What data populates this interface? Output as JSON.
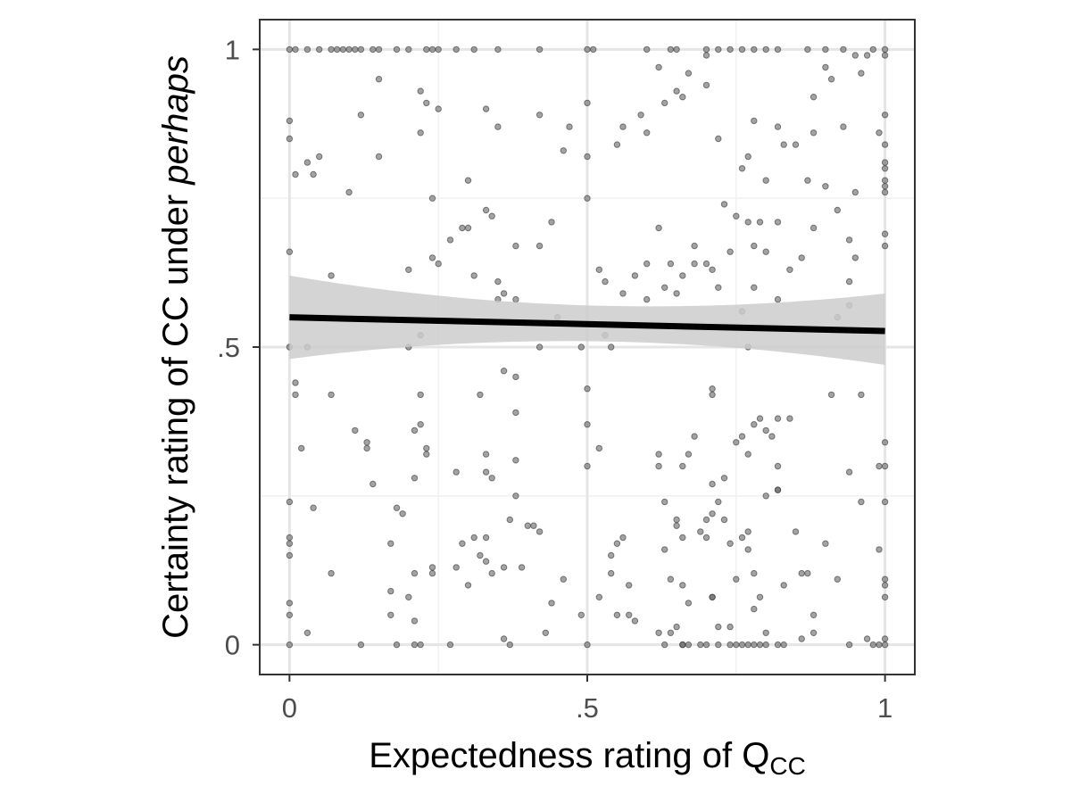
{
  "chart_data": {
    "type": "scatter",
    "title": "",
    "xlabel": {
      "prefix": "Expectedness rating of Q",
      "subscript": "CC"
    },
    "ylabel": {
      "prefix": "Certainty rating of CC under ",
      "emphasis": "perhaps"
    },
    "xlim": [
      -0.05,
      1.05
    ],
    "ylim": [
      -0.05,
      1.05
    ],
    "x_ticks": [
      {
        "value": 0,
        "label": "0"
      },
      {
        "value": 0.5,
        "label": ".5"
      },
      {
        "value": 1,
        "label": "1"
      }
    ],
    "y_ticks": [
      {
        "value": 0,
        "label": "0"
      },
      {
        "value": 0.5,
        "label": ".5"
      },
      {
        "value": 1,
        "label": "1"
      }
    ],
    "minor_gridlines": [
      0.25,
      0.75
    ],
    "grid": true,
    "legend": "none",
    "colors": {
      "points": "#666666",
      "point_stroke": "#333333",
      "fit_line": "#000000",
      "ci_band": "#cccccc",
      "grid_major": "#e5e5e5",
      "grid_minor": "#f1f1f1",
      "panel_border": "#333333"
    },
    "fit": {
      "x": [
        0,
        1
      ],
      "y": [
        0.55,
        0.527
      ],
      "ci_lower": [
        0.48,
        0.47
      ],
      "ci_upper": [
        0.62,
        0.59
      ],
      "ci_mid_x": 0.5,
      "ci_mid_lower": [
        0.51
      ],
      "ci_mid_upper": [
        0.57
      ]
    },
    "points": [
      [
        0.0,
        1.0
      ],
      [
        0.01,
        1.0
      ],
      [
        0.03,
        1.0
      ],
      [
        0.05,
        1.0
      ],
      [
        0.07,
        1.0
      ],
      [
        0.08,
        1.0
      ],
      [
        0.09,
        1.0
      ],
      [
        0.1,
        1.0
      ],
      [
        0.11,
        1.0
      ],
      [
        0.12,
        1.0
      ],
      [
        0.14,
        1.0
      ],
      [
        0.15,
        1.0
      ],
      [
        0.18,
        1.0
      ],
      [
        0.2,
        1.0
      ],
      [
        0.23,
        1.0
      ],
      [
        0.24,
        1.0
      ],
      [
        0.25,
        1.0
      ],
      [
        0.28,
        1.0
      ],
      [
        0.31,
        1.0
      ],
      [
        0.35,
        1.0
      ],
      [
        0.42,
        1.0
      ],
      [
        0.5,
        1.0
      ],
      [
        0.51,
        1.0
      ],
      [
        0.6,
        1.0
      ],
      [
        0.64,
        1.0
      ],
      [
        0.65,
        1.0
      ],
      [
        0.7,
        1.0
      ],
      [
        0.7,
        0.99
      ],
      [
        0.72,
        1.0
      ],
      [
        0.74,
        1.0
      ],
      [
        0.76,
        1.0
      ],
      [
        0.78,
        1.0
      ],
      [
        0.8,
        1.0
      ],
      [
        0.82,
        1.0
      ],
      [
        0.87,
        1.0
      ],
      [
        0.9,
        1.0
      ],
      [
        0.93,
        1.0
      ],
      [
        0.95,
        0.99
      ],
      [
        0.97,
        0.99
      ],
      [
        0.98,
        1.0
      ],
      [
        1.0,
        1.0
      ],
      [
        1.0,
        0.99
      ],
      [
        0.0,
        0.88
      ],
      [
        0.0,
        0.85
      ],
      [
        0.01,
        0.79
      ],
      [
        0.03,
        0.81
      ],
      [
        0.04,
        0.79
      ],
      [
        0.05,
        0.82
      ],
      [
        0.1,
        0.76
      ],
      [
        0.12,
        0.89
      ],
      [
        0.15,
        0.82
      ],
      [
        0.15,
        0.95
      ],
      [
        0.22,
        0.93
      ],
      [
        0.22,
        0.86
      ],
      [
        0.23,
        0.91
      ],
      [
        0.25,
        0.9
      ],
      [
        0.24,
        0.75
      ],
      [
        0.3,
        0.78
      ],
      [
        0.33,
        0.9
      ],
      [
        0.35,
        0.87
      ],
      [
        0.42,
        0.89
      ],
      [
        0.46,
        0.83
      ],
      [
        0.47,
        0.87
      ],
      [
        0.5,
        0.91
      ],
      [
        0.5,
        0.82
      ],
      [
        0.5,
        0.75
      ],
      [
        0.55,
        0.84
      ],
      [
        0.56,
        0.87
      ],
      [
        0.59,
        0.89
      ],
      [
        0.6,
        0.86
      ],
      [
        0.62,
        0.97
      ],
      [
        0.63,
        0.91
      ],
      [
        0.65,
        0.93
      ],
      [
        0.66,
        0.92
      ],
      [
        0.67,
        0.96
      ],
      [
        0.7,
        0.94
      ],
      [
        0.72,
        0.85
      ],
      [
        0.76,
        0.8
      ],
      [
        0.77,
        0.82
      ],
      [
        0.78,
        0.88
      ],
      [
        0.8,
        0.78
      ],
      [
        0.82,
        0.87
      ],
      [
        0.83,
        0.84
      ],
      [
        0.85,
        0.84
      ],
      [
        0.87,
        0.78
      ],
      [
        0.88,
        0.92
      ],
      [
        0.88,
        0.86
      ],
      [
        0.9,
        0.97
      ],
      [
        0.91,
        0.95
      ],
      [
        0.93,
        0.87
      ],
      [
        0.95,
        0.76
      ],
      [
        0.96,
        0.96
      ],
      [
        0.99,
        0.86
      ],
      [
        1.0,
        0.89
      ],
      [
        1.0,
        0.84
      ],
      [
        1.0,
        0.81
      ],
      [
        1.0,
        0.8
      ],
      [
        1.0,
        0.78
      ],
      [
        1.0,
        0.77
      ],
      [
        1.0,
        0.76
      ],
      [
        0.9,
        0.77
      ],
      [
        0.0,
        0.66
      ],
      [
        0.07,
        0.62
      ],
      [
        0.2,
        0.63
      ],
      [
        0.24,
        0.65
      ],
      [
        0.25,
        0.64
      ],
      [
        0.27,
        0.68
      ],
      [
        0.29,
        0.7
      ],
      [
        0.3,
        0.7
      ],
      [
        0.31,
        0.62
      ],
      [
        0.33,
        0.73
      ],
      [
        0.34,
        0.72
      ],
      [
        0.35,
        0.61
      ],
      [
        0.38,
        0.67
      ],
      [
        0.42,
        0.67
      ],
      [
        0.44,
        0.71
      ],
      [
        0.52,
        0.63
      ],
      [
        0.53,
        0.61
      ],
      [
        0.56,
        0.59
      ],
      [
        0.58,
        0.62
      ],
      [
        0.6,
        0.64
      ],
      [
        0.62,
        0.7
      ],
      [
        0.63,
        0.6
      ],
      [
        0.64,
        0.64
      ],
      [
        0.66,
        0.62
      ],
      [
        0.68,
        0.64
      ],
      [
        0.68,
        0.67
      ],
      [
        0.7,
        0.64
      ],
      [
        0.71,
        0.63
      ],
      [
        0.72,
        0.6
      ],
      [
        0.73,
        0.74
      ],
      [
        0.74,
        0.66
      ],
      [
        0.75,
        0.72
      ],
      [
        0.77,
        0.71
      ],
      [
        0.78,
        0.67
      ],
      [
        0.79,
        0.71
      ],
      [
        0.8,
        0.66
      ],
      [
        0.82,
        0.71
      ],
      [
        0.84,
        0.63
      ],
      [
        0.86,
        0.65
      ],
      [
        0.88,
        0.7
      ],
      [
        0.92,
        0.73
      ],
      [
        0.94,
        0.68
      ],
      [
        0.95,
        0.65
      ],
      [
        0.94,
        0.61
      ],
      [
        1.0,
        0.69
      ],
      [
        1.0,
        0.67
      ],
      [
        0.0,
        0.5
      ],
      [
        0.03,
        0.5
      ],
      [
        0.22,
        0.52
      ],
      [
        0.2,
        0.5
      ],
      [
        0.35,
        0.58
      ],
      [
        0.36,
        0.59
      ],
      [
        0.38,
        0.58
      ],
      [
        0.42,
        0.5
      ],
      [
        0.45,
        0.55
      ],
      [
        0.49,
        0.5
      ],
      [
        0.53,
        0.52
      ],
      [
        0.54,
        0.5
      ],
      [
        0.6,
        0.58
      ],
      [
        0.65,
        0.59
      ],
      [
        0.76,
        0.56
      ],
      [
        0.78,
        0.6
      ],
      [
        0.82,
        0.58
      ],
      [
        0.92,
        0.55
      ],
      [
        0.94,
        0.57
      ],
      [
        0.77,
        0.5
      ],
      [
        0.01,
        0.42
      ],
      [
        0.01,
        0.44
      ],
      [
        0.02,
        0.33
      ],
      [
        0.04,
        0.23
      ],
      [
        0.07,
        0.42
      ],
      [
        0.11,
        0.36
      ],
      [
        0.13,
        0.33
      ],
      [
        0.13,
        0.34
      ],
      [
        0.14,
        0.27
      ],
      [
        0.19,
        0.22
      ],
      [
        0.21,
        0.28
      ],
      [
        0.21,
        0.36
      ],
      [
        0.22,
        0.37
      ],
      [
        0.22,
        0.42
      ],
      [
        0.23,
        0.33
      ],
      [
        0.23,
        0.32
      ],
      [
        0.28,
        0.29
      ],
      [
        0.32,
        0.42
      ],
      [
        0.33,
        0.29
      ],
      [
        0.33,
        0.32
      ],
      [
        0.34,
        0.28
      ],
      [
        0.36,
        0.46
      ],
      [
        0.38,
        0.39
      ],
      [
        0.38,
        0.45
      ],
      [
        0.38,
        0.31
      ],
      [
        0.38,
        0.25
      ],
      [
        0.5,
        0.43
      ],
      [
        0.5,
        0.37
      ],
      [
        0.5,
        0.3
      ],
      [
        0.52,
        0.33
      ],
      [
        0.62,
        0.32
      ],
      [
        0.62,
        0.3
      ],
      [
        0.63,
        0.24
      ],
      [
        0.65,
        0.21
      ],
      [
        0.66,
        0.3
      ],
      [
        0.67,
        0.32
      ],
      [
        0.68,
        0.35
      ],
      [
        0.71,
        0.43
      ],
      [
        0.71,
        0.42
      ],
      [
        0.71,
        0.27
      ],
      [
        0.72,
        0.24
      ],
      [
        0.73,
        0.28
      ],
      [
        0.75,
        0.34
      ],
      [
        0.76,
        0.35
      ],
      [
        0.77,
        0.32
      ],
      [
        0.78,
        0.37
      ],
      [
        0.79,
        0.38
      ],
      [
        0.8,
        0.36
      ],
      [
        0.81,
        0.35
      ],
      [
        0.82,
        0.38
      ],
      [
        0.82,
        0.3
      ],
      [
        0.82,
        0.26
      ],
      [
        0.82,
        0.26
      ],
      [
        0.91,
        0.42
      ],
      [
        0.94,
        0.29
      ],
      [
        0.96,
        0.42
      ],
      [
        1.0,
        0.34
      ],
      [
        1.0,
        0.3
      ],
      [
        1.0,
        0.24
      ],
      [
        0.99,
        0.3
      ],
      [
        0.84,
        0.38
      ],
      [
        0.8,
        0.25
      ],
      [
        0.0,
        0.24
      ],
      [
        0.0,
        0.18
      ],
      [
        0.0,
        0.17
      ],
      [
        0.0,
        0.15
      ],
      [
        0.0,
        0.07
      ],
      [
        0.0,
        0.05
      ],
      [
        0.03,
        0.02
      ],
      [
        0.07,
        0.12
      ],
      [
        0.17,
        0.17
      ],
      [
        0.18,
        0.23
      ],
      [
        0.2,
        0.08
      ],
      [
        0.21,
        0.04
      ],
      [
        0.21,
        0.12
      ],
      [
        0.17,
        0.09
      ],
      [
        0.17,
        0.05
      ],
      [
        0.24,
        0.13
      ],
      [
        0.24,
        0.12
      ],
      [
        0.28,
        0.13
      ],
      [
        0.29,
        0.17
      ],
      [
        0.3,
        0.1
      ],
      [
        0.31,
        0.18
      ],
      [
        0.32,
        0.15
      ],
      [
        0.33,
        0.18
      ],
      [
        0.33,
        0.14
      ],
      [
        0.34,
        0.12
      ],
      [
        0.36,
        0.13
      ],
      [
        0.37,
        0.21
      ],
      [
        0.39,
        0.13
      ],
      [
        0.4,
        0.2
      ],
      [
        0.41,
        0.2
      ],
      [
        0.42,
        0.19
      ],
      [
        0.43,
        0.02
      ],
      [
        0.44,
        0.07
      ],
      [
        0.46,
        0.11
      ],
      [
        0.49,
        0.05
      ],
      [
        0.52,
        0.08
      ],
      [
        0.54,
        0.12
      ],
      [
        0.54,
        0.15
      ],
      [
        0.55,
        0.17
      ],
      [
        0.56,
        0.18
      ],
      [
        0.57,
        0.1
      ],
      [
        0.55,
        0.05
      ],
      [
        0.57,
        0.05
      ],
      [
        0.58,
        0.04
      ],
      [
        0.63,
        0.16
      ],
      [
        0.64,
        0.11
      ],
      [
        0.65,
        0.2
      ],
      [
        0.66,
        0.18
      ],
      [
        0.66,
        0.1
      ],
      [
        0.67,
        0.07
      ],
      [
        0.69,
        0.19
      ],
      [
        0.7,
        0.21
      ],
      [
        0.7,
        0.18
      ],
      [
        0.71,
        0.08
      ],
      [
        0.71,
        0.08
      ],
      [
        0.71,
        0.22
      ],
      [
        0.72,
        0.03
      ],
      [
        0.73,
        0.21
      ],
      [
        0.74,
        0.17
      ],
      [
        0.75,
        0.11
      ],
      [
        0.76,
        0.18
      ],
      [
        0.77,
        0.16
      ],
      [
        0.77,
        0.19
      ],
      [
        0.78,
        0.12
      ],
      [
        0.78,
        0.06
      ],
      [
        0.79,
        0.08
      ],
      [
        0.8,
        0.02
      ],
      [
        0.83,
        0.1
      ],
      [
        0.85,
        0.19
      ],
      [
        0.86,
        0.12
      ],
      [
        0.87,
        0.12
      ],
      [
        0.88,
        0.05
      ],
      [
        0.9,
        0.17
      ],
      [
        0.92,
        0.11
      ],
      [
        0.96,
        0.24
      ],
      [
        0.99,
        0.16
      ],
      [
        1.0,
        0.11
      ],
      [
        1.0,
        0.1
      ],
      [
        1.0,
        0.08
      ],
      [
        0.97,
        0.01
      ],
      [
        0.0,
        0.0
      ],
      [
        0.12,
        0.0
      ],
      [
        0.18,
        0.0
      ],
      [
        0.21,
        0.0
      ],
      [
        0.22,
        0.0
      ],
      [
        0.27,
        0.0
      ],
      [
        0.36,
        0.01
      ],
      [
        0.37,
        0.0
      ],
      [
        0.5,
        0.0
      ],
      [
        0.62,
        0.02
      ],
      [
        0.63,
        0.0
      ],
      [
        0.64,
        0.02
      ],
      [
        0.66,
        0.0
      ],
      [
        0.66,
        0.0
      ],
      [
        0.67,
        0.0
      ],
      [
        0.69,
        0.0
      ],
      [
        0.7,
        0.0
      ],
      [
        0.72,
        0.0
      ],
      [
        0.74,
        0.0
      ],
      [
        0.75,
        0.0
      ],
      [
        0.76,
        0.0
      ],
      [
        0.77,
        0.0
      ],
      [
        0.78,
        0.0
      ],
      [
        0.79,
        0.0
      ],
      [
        0.8,
        0.0
      ],
      [
        0.82,
        0.0
      ],
      [
        0.83,
        0.0
      ],
      [
        0.86,
        0.01
      ],
      [
        0.88,
        0.02
      ],
      [
        0.94,
        0.0
      ],
      [
        0.98,
        0.0
      ],
      [
        0.99,
        0.0
      ],
      [
        1.0,
        0.0
      ],
      [
        1.0,
        0.01
      ],
      [
        0.65,
        0.03
      ],
      [
        0.74,
        0.03
      ]
    ]
  }
}
